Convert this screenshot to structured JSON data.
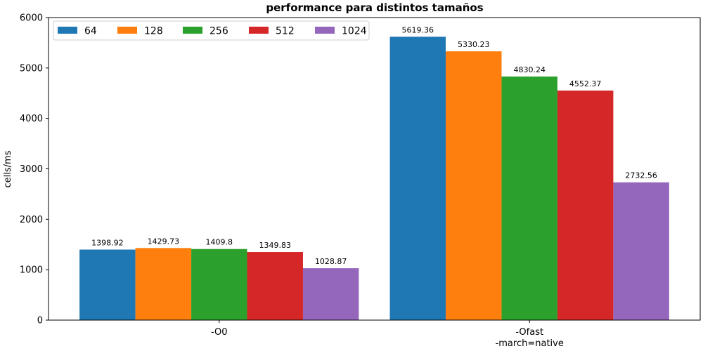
{
  "chart_data": {
    "type": "bar",
    "title": "performance para distintos tamaños",
    "xlabel": "",
    "ylabel": "cells/ms",
    "ylim": [
      0,
      6000
    ],
    "yticks": [
      0,
      1000,
      2000,
      3000,
      4000,
      5000,
      6000
    ],
    "categories": [
      [
        "-O0"
      ],
      [
        "-Ofast",
        "-march=native"
      ]
    ],
    "legend_position": "top-left",
    "grid": false,
    "series": [
      {
        "name": "64",
        "color": "#1f77b4",
        "values": [
          1398.92,
          5619.36
        ],
        "labels": [
          "1398.92",
          "5619.36"
        ]
      },
      {
        "name": "128",
        "color": "#ff7f0e",
        "values": [
          1429.73,
          5330.23
        ],
        "labels": [
          "1429.73",
          "5330.23"
        ]
      },
      {
        "name": "256",
        "color": "#2ca02c",
        "values": [
          1409.8,
          4830.24
        ],
        "labels": [
          "1409.8",
          "4830.24"
        ]
      },
      {
        "name": "512",
        "color": "#d62728",
        "values": [
          1349.83,
          4552.37
        ],
        "labels": [
          "1349.83",
          "4552.37"
        ]
      },
      {
        "name": "1024",
        "color": "#9467bd",
        "values": [
          1028.87,
          2732.56
        ],
        "labels": [
          "1028.87",
          "2732.56"
        ]
      }
    ]
  }
}
